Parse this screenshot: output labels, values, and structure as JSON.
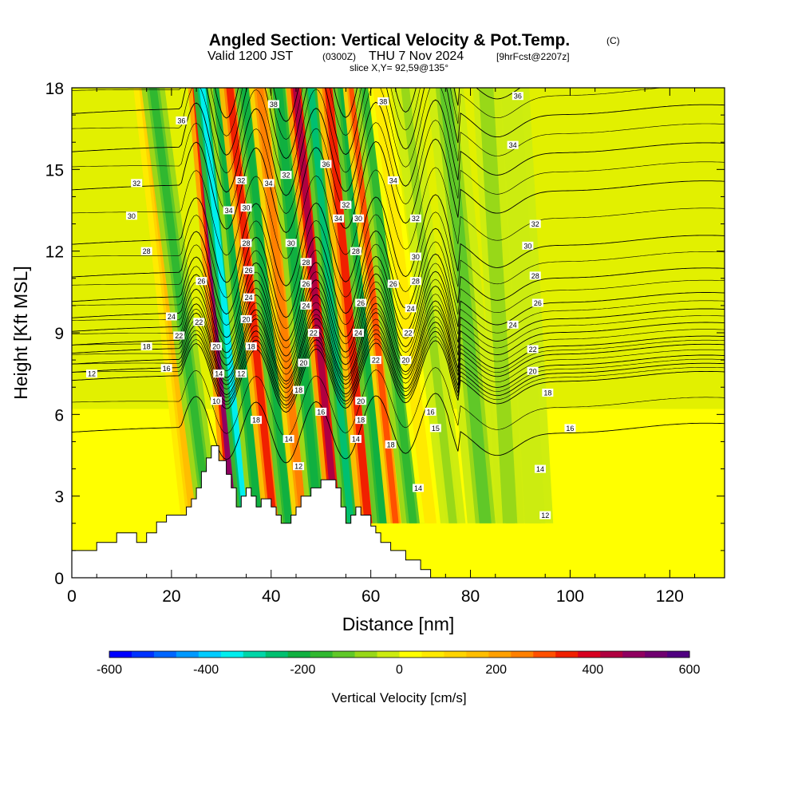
{
  "chart_data": {
    "type": "heatmap",
    "title": {
      "main": "Angled Section: Vertical Velocity & Pot.Temp.",
      "units_tag": "(C)",
      "valid_a": "Valid 1200 JST",
      "valid_b": "(0300Z)",
      "valid_c": "THU 7 Nov 2024",
      "valid_d": "[9hrFcst@2207z]",
      "slice": "slice X,Y= 92,59@135°"
    },
    "xlabel": "Distance [nm]",
    "ylabel": "Height [Kft MSL]",
    "xlim": [
      0,
      131
    ],
    "ylim": [
      0,
      18
    ],
    "x_ticks": [
      0,
      20,
      40,
      60,
      80,
      100,
      120
    ],
    "x_tick_labels": [
      "0",
      "20",
      "40",
      "60",
      "80",
      "100",
      "120"
    ],
    "y_ticks": [
      0,
      3,
      6,
      9,
      12,
      15,
      18
    ],
    "y_tick_labels": [
      "0",
      "3",
      "6",
      "9",
      "12",
      "15",
      "18"
    ],
    "colorbar": {
      "label": "Vertical Velocity [cm/s]",
      "min": -600,
      "max": 600,
      "tick_values": [
        -600,
        -400,
        -200,
        0,
        200,
        400,
        600
      ],
      "tick_labels": [
        "-600",
        "-400",
        "-200",
        "0",
        "200",
        "400",
        "600"
      ],
      "colors": [
        "#0000ff",
        "#0033ff",
        "#0066ff",
        "#0099ff",
        "#00ccff",
        "#00eeee",
        "#00d6a8",
        "#00c070",
        "#10b040",
        "#30b830",
        "#60c828",
        "#98d818",
        "#ccec10",
        "#ffff00",
        "#ffea00",
        "#ffd400",
        "#ffbe00",
        "#ffa000",
        "#ff8000",
        "#ff5000",
        "#f02000",
        "#d80020",
        "#b00040",
        "#900060",
        "#700070",
        "#500080"
      ]
    },
    "vertical_velocity_bands": [
      {
        "x": 24.5,
        "tilt": -0.6,
        "w": 1.4,
        "v": 140
      },
      {
        "x": 27.5,
        "tilt": -0.7,
        "w": 1.3,
        "v": -180
      },
      {
        "x": 32.5,
        "tilt": -0.45,
        "w": 1.1,
        "v": 480
      },
      {
        "x": 35.0,
        "tilt": -0.55,
        "w": 1.0,
        "v": -360
      },
      {
        "x": 37.5,
        "tilt": -0.5,
        "w": 1.2,
        "v": -200
      },
      {
        "x": 40.5,
        "tilt": -0.55,
        "w": 1.2,
        "v": 360
      },
      {
        "x": 43.5,
        "tilt": -0.55,
        "w": 1.1,
        "v": -230
      },
      {
        "x": 46.5,
        "tilt": -0.55,
        "w": 1.2,
        "v": 260
      },
      {
        "x": 49.5,
        "tilt": -0.5,
        "w": 1.3,
        "v": -200
      },
      {
        "x": 53.0,
        "tilt": -0.5,
        "w": 1.1,
        "v": 460
      },
      {
        "x": 56.0,
        "tilt": -0.5,
        "w": 1.1,
        "v": -240
      },
      {
        "x": 59.5,
        "tilt": -0.5,
        "w": 1.3,
        "v": 360
      },
      {
        "x": 62.5,
        "tilt": -0.5,
        "w": 1.2,
        "v": -220
      },
      {
        "x": 65.0,
        "tilt": -0.55,
        "w": 1.0,
        "v": 280
      },
      {
        "x": 68.5,
        "tilt": -0.6,
        "w": 1.3,
        "v": -160
      },
      {
        "x": 72.0,
        "tilt": -0.65,
        "w": 1.2,
        "v": 80
      },
      {
        "x": 76.5,
        "tilt": -0.6,
        "w": 1.4,
        "v": -60
      },
      {
        "x": 83.0,
        "tilt": -0.5,
        "w": 2.0,
        "v": -100
      },
      {
        "x": 88.0,
        "tilt": -0.3,
        "w": 1.5,
        "v": -70
      },
      {
        "x": 93.0,
        "tilt": -0.3,
        "w": 2.0,
        "v": -40
      }
    ],
    "terrain": [
      [
        0,
        1.0
      ],
      [
        5,
        1.0
      ],
      [
        5,
        1.3
      ],
      [
        9,
        1.3
      ],
      [
        9,
        1.65
      ],
      [
        13,
        1.65
      ],
      [
        13,
        1.3
      ],
      [
        15,
        1.3
      ],
      [
        15,
        1.65
      ],
      [
        17,
        1.65
      ],
      [
        17,
        2.05
      ],
      [
        19,
        2.05
      ],
      [
        19,
        2.3
      ],
      [
        23,
        2.3
      ],
      [
        23,
        2.6
      ],
      [
        24,
        2.6
      ],
      [
        24,
        2.9
      ],
      [
        25,
        2.9
      ],
      [
        25,
        3.3
      ],
      [
        26,
        3.3
      ],
      [
        26,
        3.9
      ],
      [
        27,
        3.9
      ],
      [
        27,
        4.4
      ],
      [
        28,
        4.4
      ],
      [
        28,
        4.85
      ],
      [
        29.5,
        4.85
      ],
      [
        29.5,
        4.3
      ],
      [
        31,
        4.3
      ],
      [
        31,
        3.8
      ],
      [
        32,
        3.8
      ],
      [
        32,
        3.3
      ],
      [
        33,
        3.3
      ],
      [
        33,
        2.6
      ],
      [
        34,
        2.6
      ],
      [
        34,
        3.0
      ],
      [
        35,
        3.0
      ],
      [
        35,
        3.3
      ],
      [
        36,
        3.3
      ],
      [
        36,
        3.0
      ],
      [
        37,
        3.0
      ],
      [
        37,
        2.6
      ],
      [
        38,
        2.6
      ],
      [
        38,
        2.9
      ],
      [
        40,
        2.9
      ],
      [
        40,
        2.6
      ],
      [
        41,
        2.6
      ],
      [
        41,
        2.3
      ],
      [
        42,
        2.3
      ],
      [
        42,
        2.0
      ],
      [
        44,
        2.0
      ],
      [
        44,
        2.3
      ],
      [
        45,
        2.3
      ],
      [
        45,
        2.6
      ],
      [
        46,
        2.6
      ],
      [
        46,
        3.0
      ],
      [
        48,
        3.0
      ],
      [
        48,
        3.3
      ],
      [
        50,
        3.3
      ],
      [
        50,
        3.6
      ],
      [
        53,
        3.6
      ],
      [
        53,
        3.3
      ],
      [
        54,
        3.3
      ],
      [
        54,
        2.6
      ],
      [
        55,
        2.6
      ],
      [
        55,
        2.0
      ],
      [
        56,
        2.0
      ],
      [
        56,
        2.3
      ],
      [
        57,
        2.3
      ],
      [
        57,
        2.6
      ],
      [
        58,
        2.6
      ],
      [
        58,
        2.3
      ],
      [
        60,
        2.3
      ],
      [
        60,
        1.9
      ],
      [
        61,
        1.9
      ],
      [
        61,
        1.65
      ],
      [
        62,
        1.65
      ],
      [
        62,
        1.3
      ],
      [
        64,
        1.3
      ],
      [
        64,
        1.0
      ],
      [
        67,
        1.0
      ],
      [
        67,
        0.65
      ],
      [
        70,
        0.65
      ],
      [
        70,
        0.3
      ],
      [
        72,
        0.3
      ],
      [
        72,
        0.0
      ]
    ],
    "theta_levels": [
      {
        "label": "10",
        "y": 5.5
      },
      {
        "label": "12",
        "y": 7.4
      },
      {
        "label": "14",
        "y": 7.7
      },
      {
        "label": "16",
        "y": 8.0
      },
      {
        "label": "18",
        "y": 8.4
      },
      {
        "label": "20",
        "y": 8.7
      },
      {
        "label": "22",
        "y": 9.2
      },
      {
        "label": "24",
        "y": 9.7
      },
      {
        "label": "26",
        "y": 10.3
      },
      {
        "label": "28",
        "y": 11.2
      },
      {
        "label": "30",
        "y": 12.4
      },
      {
        "label": "32",
        "y": 14.4
      },
      {
        "label": "34",
        "y": 15.8
      },
      {
        "label": "36",
        "y": 17.2
      },
      {
        "label": "38",
        "y": 18.6
      }
    ],
    "contour_labels": [
      {
        "t": "36",
        "x": 22,
        "y": 16.8
      },
      {
        "t": "32",
        "x": 13,
        "y": 14.5
      },
      {
        "t": "30",
        "x": 12,
        "y": 13.3
      },
      {
        "t": "28",
        "x": 15,
        "y": 12.0
      },
      {
        "t": "26",
        "x": 26,
        "y": 10.9
      },
      {
        "t": "24",
        "x": 20,
        "y": 9.6
      },
      {
        "t": "22",
        "x": 21.5,
        "y": 8.9
      },
      {
        "t": "22",
        "x": 25.5,
        "y": 9.4
      },
      {
        "t": "18",
        "x": 15,
        "y": 8.5
      },
      {
        "t": "16",
        "x": 19,
        "y": 7.7
      },
      {
        "t": "12",
        "x": 4,
        "y": 7.5
      },
      {
        "t": "20",
        "x": 29,
        "y": 8.5
      },
      {
        "t": "14",
        "x": 29.5,
        "y": 7.5
      },
      {
        "t": "10",
        "x": 29,
        "y": 6.5
      },
      {
        "t": "34",
        "x": 31.5,
        "y": 13.5
      },
      {
        "t": "32",
        "x": 34,
        "y": 14.6
      },
      {
        "t": "30",
        "x": 35,
        "y": 13.6
      },
      {
        "t": "28",
        "x": 35,
        "y": 12.3
      },
      {
        "t": "26",
        "x": 35.5,
        "y": 11.3
      },
      {
        "t": "24",
        "x": 35.5,
        "y": 10.3
      },
      {
        "t": "20",
        "x": 35,
        "y": 9.5
      },
      {
        "t": "18",
        "x": 36,
        "y": 8.5
      },
      {
        "t": "12",
        "x": 34,
        "y": 7.5
      },
      {
        "t": "18",
        "x": 37,
        "y": 5.8
      },
      {
        "t": "38",
        "x": 40.5,
        "y": 17.4
      },
      {
        "t": "34",
        "x": 39.5,
        "y": 14.5
      },
      {
        "t": "32",
        "x": 43,
        "y": 14.8
      },
      {
        "t": "30",
        "x": 44,
        "y": 12.3
      },
      {
        "t": "28",
        "x": 47,
        "y": 11.6
      },
      {
        "t": "26",
        "x": 47,
        "y": 10.8
      },
      {
        "t": "24",
        "x": 47,
        "y": 10.0
      },
      {
        "t": "22",
        "x": 48.5,
        "y": 9.0
      },
      {
        "t": "20",
        "x": 46.5,
        "y": 7.9
      },
      {
        "t": "18",
        "x": 45.5,
        "y": 6.9
      },
      {
        "t": "16",
        "x": 50,
        "y": 6.1
      },
      {
        "t": "14",
        "x": 43.5,
        "y": 5.1
      },
      {
        "t": "12",
        "x": 45.5,
        "y": 4.1
      },
      {
        "t": "36",
        "x": 51,
        "y": 15.2
      },
      {
        "t": "32",
        "x": 55,
        "y": 13.7
      },
      {
        "t": "34",
        "x": 53.5,
        "y": 13.2
      },
      {
        "t": "30",
        "x": 57.5,
        "y": 13.2
      },
      {
        "t": "28",
        "x": 57,
        "y": 12.0
      },
      {
        "t": "26",
        "x": 58,
        "y": 10.1
      },
      {
        "t": "24",
        "x": 57.5,
        "y": 9.0
      },
      {
        "t": "22",
        "x": 61,
        "y": 8.0
      },
      {
        "t": "20",
        "x": 58,
        "y": 6.5
      },
      {
        "t": "18",
        "x": 58,
        "y": 5.8
      },
      {
        "t": "14",
        "x": 57,
        "y": 5.1
      },
      {
        "t": "38",
        "x": 62.5,
        "y": 17.5
      },
      {
        "t": "34",
        "x": 64.5,
        "y": 14.6
      },
      {
        "t": "32",
        "x": 69,
        "y": 13.2
      },
      {
        "t": "30",
        "x": 69,
        "y": 11.8
      },
      {
        "t": "28",
        "x": 69,
        "y": 10.9
      },
      {
        "t": "26",
        "x": 64.5,
        "y": 10.8
      },
      {
        "t": "24",
        "x": 68,
        "y": 9.9
      },
      {
        "t": "22",
        "x": 67.5,
        "y": 9.0
      },
      {
        "t": "20",
        "x": 67,
        "y": 8.0
      },
      {
        "t": "18",
        "x": 64,
        "y": 4.9
      },
      {
        "t": "16",
        "x": 72,
        "y": 6.1
      },
      {
        "t": "14",
        "x": 69.5,
        "y": 3.3
      },
      {
        "t": "15",
        "x": 73,
        "y": 5.5
      },
      {
        "t": "36",
        "x": 89.5,
        "y": 17.7
      },
      {
        "t": "34",
        "x": 88.5,
        "y": 15.9
      },
      {
        "t": "32",
        "x": 93,
        "y": 13.0
      },
      {
        "t": "30",
        "x": 91.5,
        "y": 12.2
      },
      {
        "t": "28",
        "x": 93,
        "y": 11.1
      },
      {
        "t": "26",
        "x": 93.5,
        "y": 10.1
      },
      {
        "t": "24",
        "x": 88.5,
        "y": 9.3
      },
      {
        "t": "22",
        "x": 92.5,
        "y": 8.4
      },
      {
        "t": "20",
        "x": 92.5,
        "y": 7.6
      },
      {
        "t": "18",
        "x": 95.5,
        "y": 6.8
      },
      {
        "t": "16",
        "x": 100,
        "y": 5.5
      },
      {
        "t": "14",
        "x": 94,
        "y": 4.0
      },
      {
        "t": "12",
        "x": 95,
        "y": 2.3
      }
    ]
  }
}
